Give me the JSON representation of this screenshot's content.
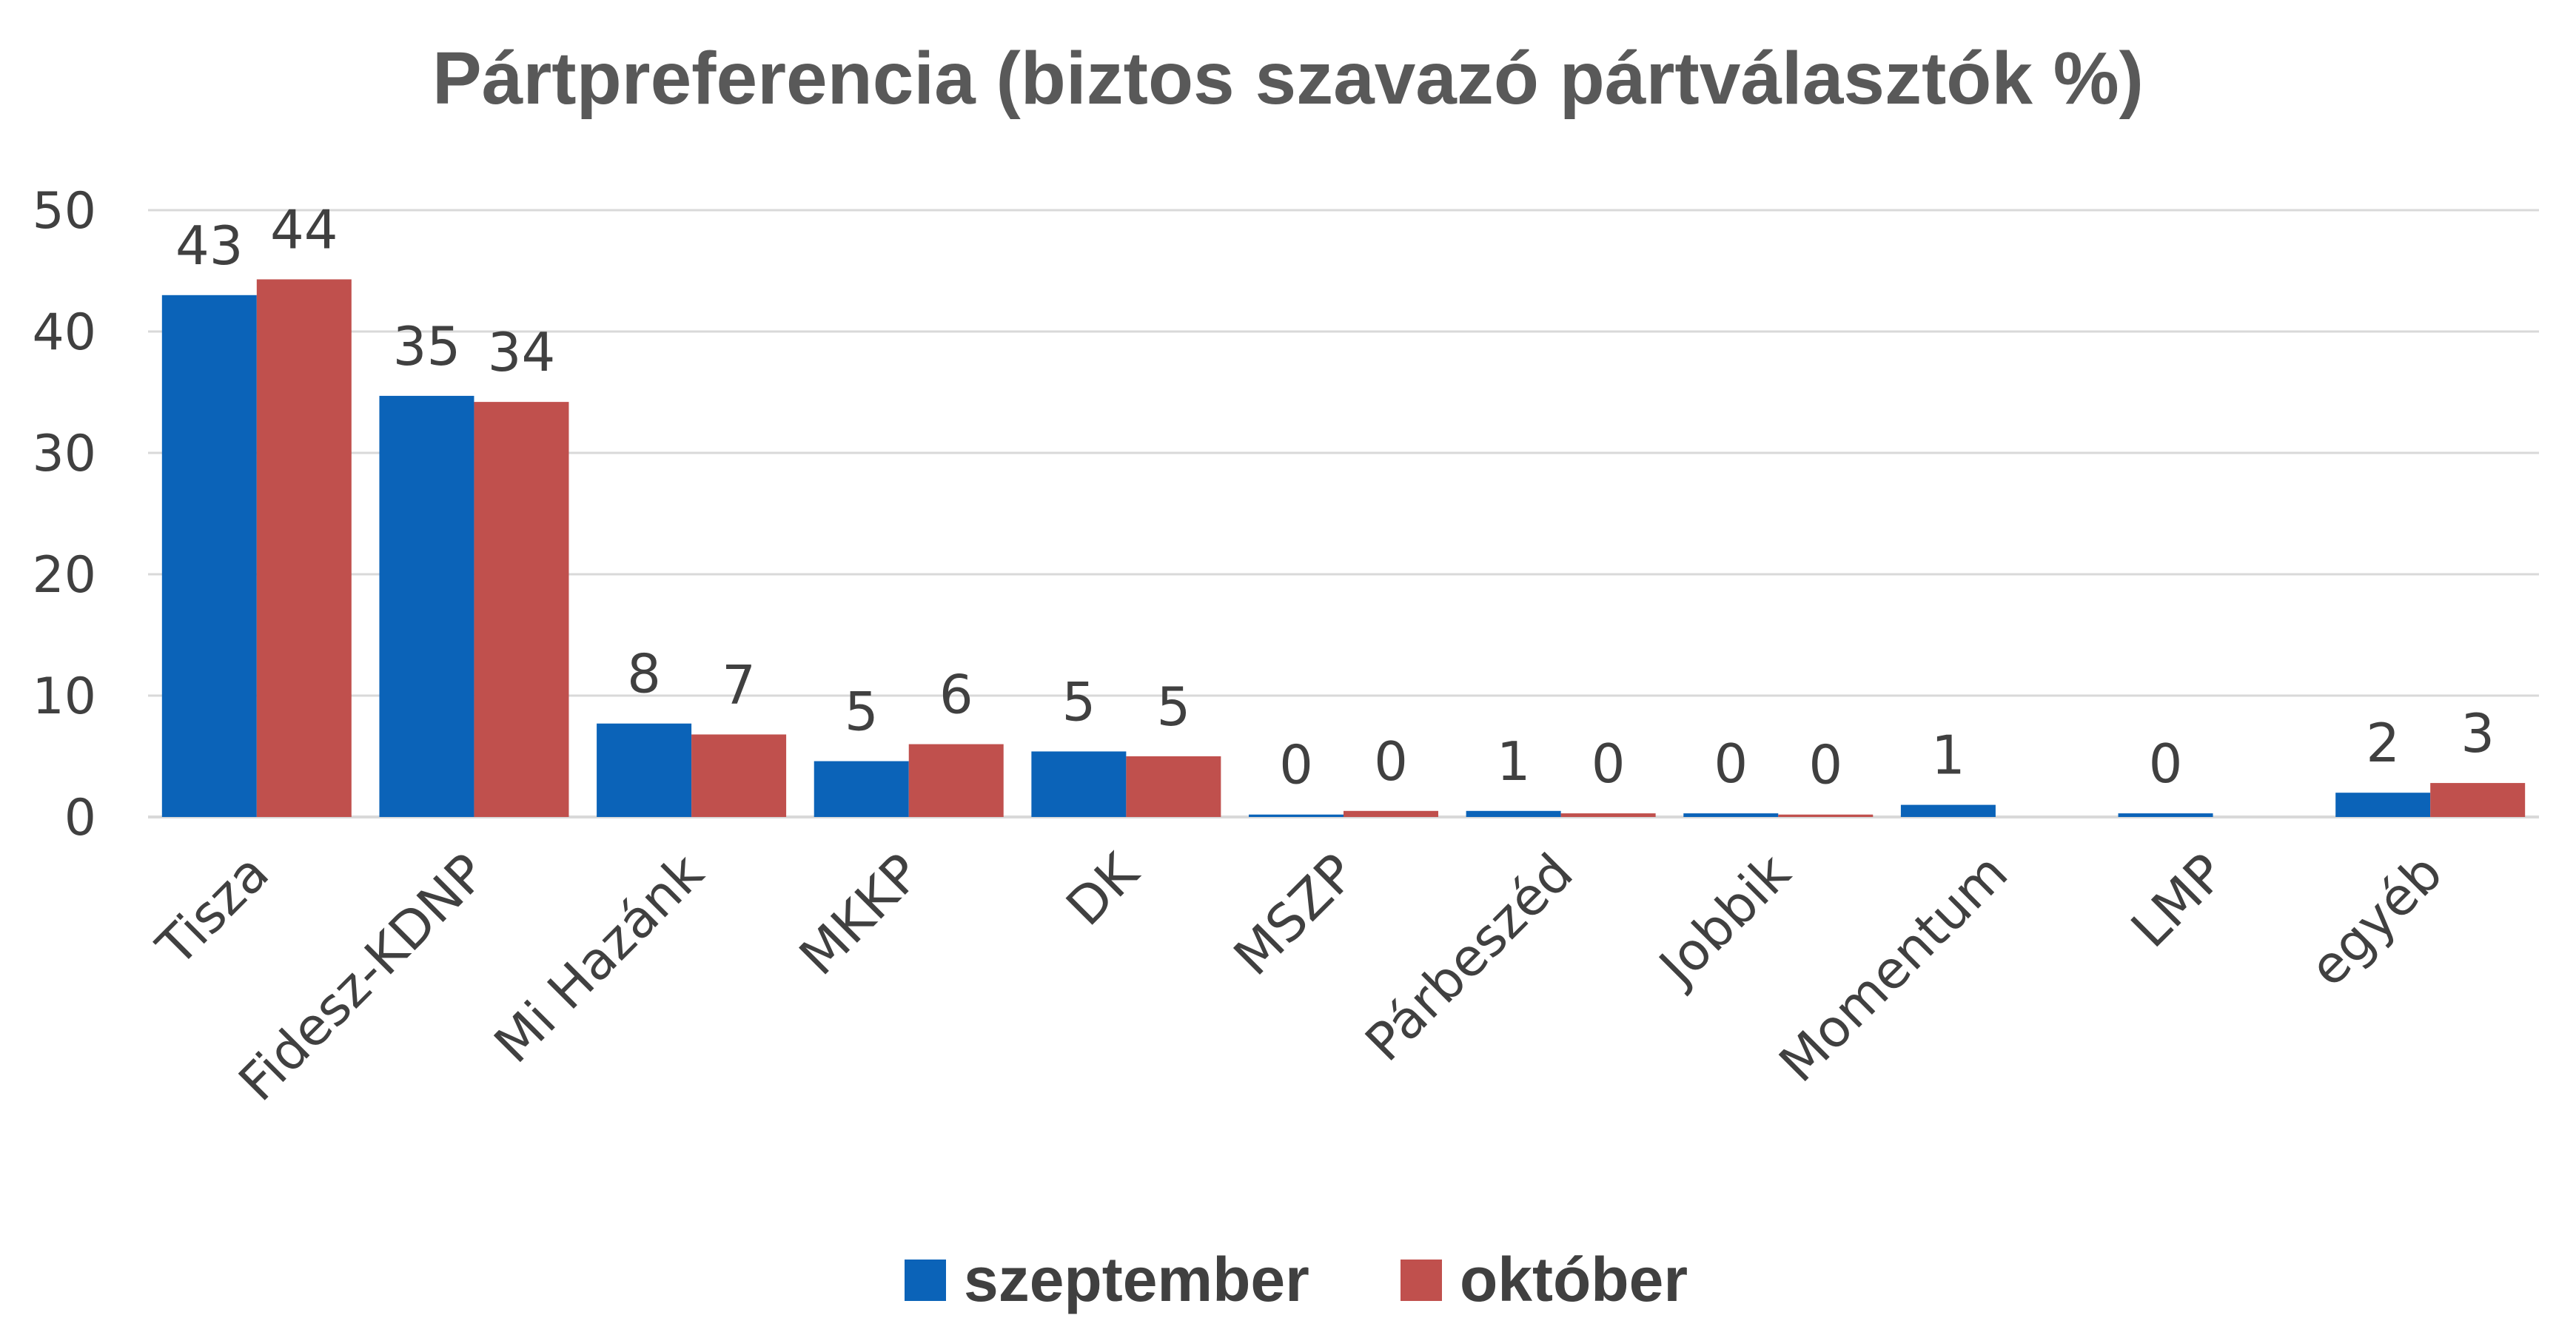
{
  "chart_data": {
    "type": "bar",
    "title": "Pártpreferencia (biztos szavazó pártválasztók %)",
    "xlabel": "",
    "ylabel": "",
    "ylim": [
      0,
      50
    ],
    "yticks": [
      "0",
      "10",
      "20",
      "30",
      "40",
      "50"
    ],
    "grid": true,
    "legend_position": "bottom",
    "categories": [
      "Tisza",
      "Fidesz-KDNP",
      "Mi Hazánk",
      "MKKP",
      "DK",
      "MSZP",
      "Párbeszéd",
      "Jobbik",
      "Momentum",
      "LMP",
      "egyéb"
    ],
    "series": [
      {
        "name": "szeptember",
        "color": "#0b63b8",
        "values": [
          43,
          34.7,
          7.7,
          4.6,
          5.4,
          0.2,
          0.5,
          0.3,
          1.0,
          0.3,
          2.0
        ],
        "labels": [
          "43",
          "35",
          "8",
          "5",
          "5",
          "0",
          "1",
          "0",
          "1",
          "0",
          "2"
        ]
      },
      {
        "name": "október",
        "color": "#c0504d",
        "values": [
          44.3,
          34.2,
          6.8,
          6.0,
          5.0,
          0.5,
          0.3,
          0.2,
          null,
          null,
          2.8
        ],
        "labels": [
          "44",
          "34",
          "7",
          "6",
          "5",
          "0",
          "0",
          "0",
          "",
          "",
          "3"
        ]
      }
    ]
  }
}
